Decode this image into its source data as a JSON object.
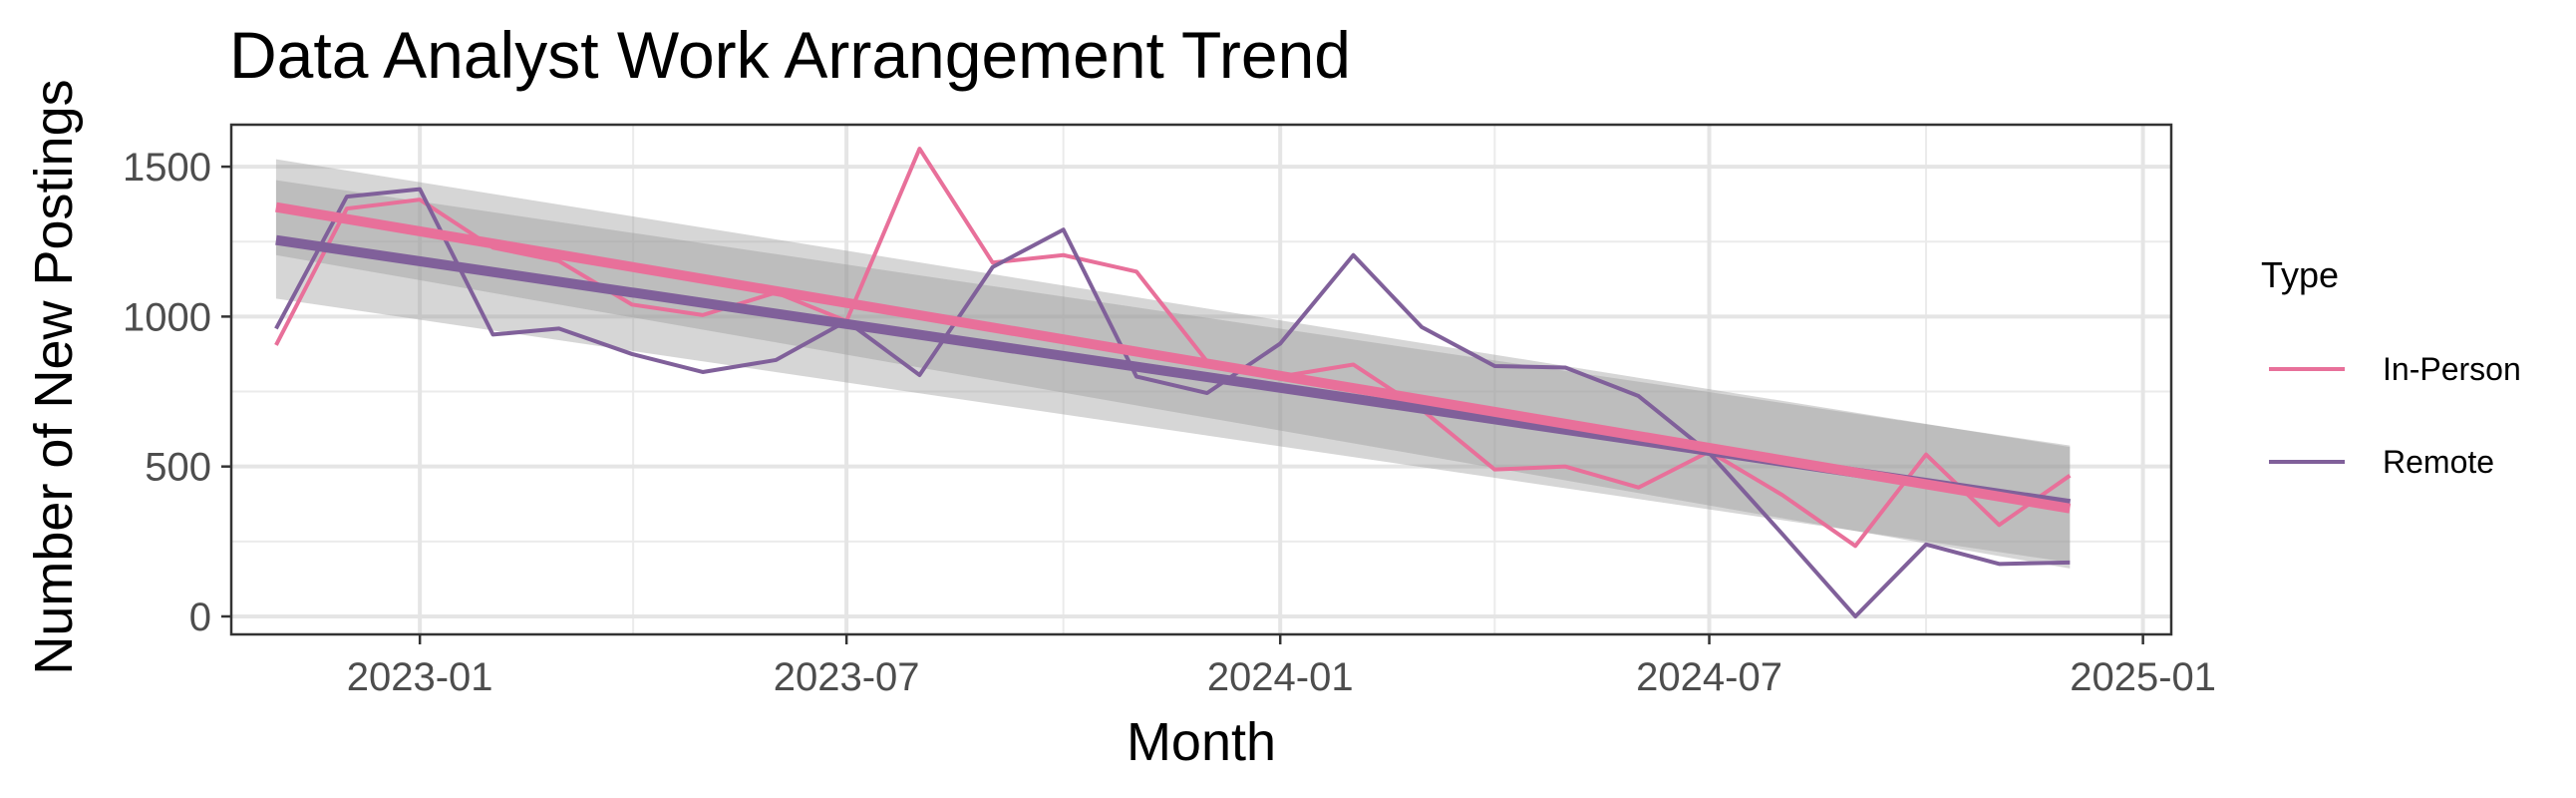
{
  "chart_data": {
    "type": "line",
    "title": "Data Analyst Work Arrangement Trend",
    "xlabel": "Month",
    "ylabel": "Number of New Postings",
    "x": [
      "2022-11",
      "2022-12",
      "2023-01",
      "2023-02",
      "2023-03",
      "2023-04",
      "2023-05",
      "2023-06",
      "2023-07",
      "2023-08",
      "2023-09",
      "2023-10",
      "2023-11",
      "2023-12",
      "2024-01",
      "2024-02",
      "2024-03",
      "2024-04",
      "2024-05",
      "2024-06",
      "2024-07",
      "2024-08",
      "2024-09",
      "2024-10",
      "2024-11",
      "2024-12"
    ],
    "series": [
      {
        "name": "In-Person",
        "color": "#e8709a",
        "values": [
          905,
          1360,
          1390,
          1230,
          1185,
          1040,
          1005,
          1080,
          985,
          1560,
          1180,
          1205,
          1150,
          850,
          800,
          840,
          690,
          490,
          500,
          430,
          550,
          405,
          235,
          540,
          305,
          470
        ],
        "trend": {
          "start": 1365,
          "end": 360,
          "ci_start": [
            1205,
            1525
          ],
          "ci_end": [
            160,
            565
          ]
        }
      },
      {
        "name": "Remote",
        "color": "#80609a",
        "values": [
          960,
          1400,
          1425,
          940,
          960,
          875,
          815,
          855,
          985,
          805,
          1165,
          1290,
          800,
          745,
          910,
          1205,
          965,
          835,
          830,
          735,
          545,
          275,
          0,
          240,
          175,
          180
        ],
        "trend": {
          "start": 1255,
          "end": 375,
          "ci_start": [
            1060,
            1455
          ],
          "ci_end": [
            180,
            570
          ]
        }
      }
    ],
    "x_ticks": [
      "2023-01",
      "2023-07",
      "2024-01",
      "2024-07",
      "2025-01"
    ],
    "y_ticks": [
      "0",
      "500",
      "1000",
      "1500"
    ],
    "ylim": [
      -60,
      1640
    ],
    "xlim": [
      "2022-10-13",
      "2025-01-13"
    ],
    "grid": true,
    "legend": {
      "title": "Type",
      "placement": "right",
      "entries": [
        "In-Person",
        "Remote"
      ]
    }
  }
}
